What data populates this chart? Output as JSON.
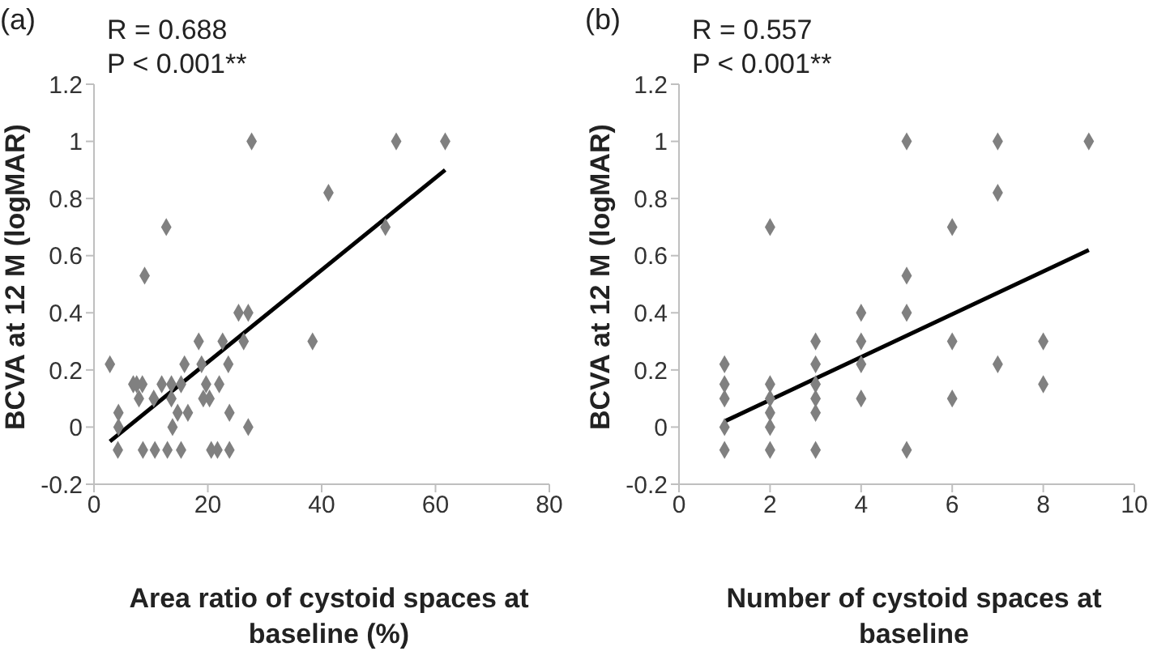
{
  "chart_data": [
    {
      "type": "scatter",
      "title": "(a)",
      "xlabel": "Area ratio of cystoid spaces at baseline (%)",
      "ylabel": "BCVA at 12 M (logMAR)",
      "annotations": [
        "R = 0.688",
        "P < 0.001**"
      ],
      "xlim": [
        0,
        80
      ],
      "xticks": [
        0,
        20,
        40,
        60,
        80
      ],
      "ylim": [
        -0.2,
        1.2
      ],
      "yticks": [
        -0.2,
        0,
        0.2,
        0.4,
        0.6,
        0.8,
        1,
        1.2
      ],
      "grid": false,
      "series": [
        {
          "marker": "diamond",
          "color": "#808080",
          "x": [
            2.8,
            4.3,
            4.3,
            4.2,
            6.9,
            7.5,
            8.5,
            7.9,
            8.6,
            8.9,
            10.7,
            10.5,
            11.9,
            12.7,
            12.9,
            13.6,
            13.6,
            13.8,
            14.7,
            15.3,
            15.3,
            15.9,
            16.5,
            18.4,
            18.9,
            19.2,
            19.7,
            20.3,
            20.6,
            21.7,
            22.0,
            22.6,
            23.6,
            23.8,
            23.8,
            25.4,
            26.3,
            27.1,
            27.1,
            27.7,
            38.4,
            41.2,
            51.2,
            53.1,
            61.7
          ],
          "values": [
            0.22,
            0.05,
            0,
            -0.08,
            0.15,
            0.15,
            0.15,
            0.1,
            -0.08,
            0.53,
            -0.08,
            0.1,
            0.15,
            0.7,
            -0.08,
            0.15,
            0.1,
            0,
            0.05,
            0.15,
            -0.08,
            0.22,
            0.05,
            0.3,
            0.22,
            0.1,
            0.15,
            0.1,
            -0.08,
            -0.08,
            0.15,
            0.3,
            0.22,
            0.05,
            -0.08,
            0.4,
            0.3,
            0.4,
            0,
            1,
            0.3,
            0.82,
            0.7,
            1,
            1
          ]
        },
        {
          "type": "line",
          "marker": "none",
          "color": "#000000",
          "x": [
            2.8,
            61.7
          ],
          "values": [
            -0.05,
            0.9
          ]
        }
      ]
    },
    {
      "type": "scatter",
      "title": "(b)",
      "xlabel": "Number of cystoid spaces at baseline",
      "ylabel": "BCVA at 12 M (logMAR)",
      "annotations": [
        "R = 0.557",
        "P < 0.001**"
      ],
      "xlim": [
        0,
        10
      ],
      "xticks": [
        0,
        2,
        4,
        6,
        8,
        10
      ],
      "ylim": [
        -0.2,
        1.2
      ],
      "yticks": [
        -0.2,
        0,
        0.2,
        0.4,
        0.6,
        0.8,
        1,
        1.2
      ],
      "grid": false,
      "series": [
        {
          "marker": "diamond",
          "color": "#808080",
          "x": [
            1,
            1,
            1,
            1,
            1,
            2,
            2,
            2,
            2,
            2,
            2,
            3,
            3,
            3,
            3,
            3,
            3,
            4,
            4,
            4,
            4,
            5,
            5,
            5,
            5,
            6,
            6,
            6,
            7,
            7,
            7,
            8,
            8,
            9
          ],
          "values": [
            0.22,
            0.15,
            0.1,
            0,
            -0.08,
            0.7,
            0.15,
            0.1,
            0.05,
            0,
            -0.08,
            0.3,
            0.22,
            0.15,
            0.1,
            0.05,
            -0.08,
            0.4,
            0.3,
            0.22,
            0.1,
            1,
            0.53,
            0.4,
            -0.08,
            0.7,
            0.3,
            0.1,
            1,
            0.82,
            0.22,
            0.3,
            0.15,
            1
          ]
        },
        {
          "type": "line",
          "marker": "none",
          "color": "#000000",
          "x": [
            1,
            9
          ],
          "values": [
            0.02,
            0.62
          ]
        }
      ]
    }
  ]
}
